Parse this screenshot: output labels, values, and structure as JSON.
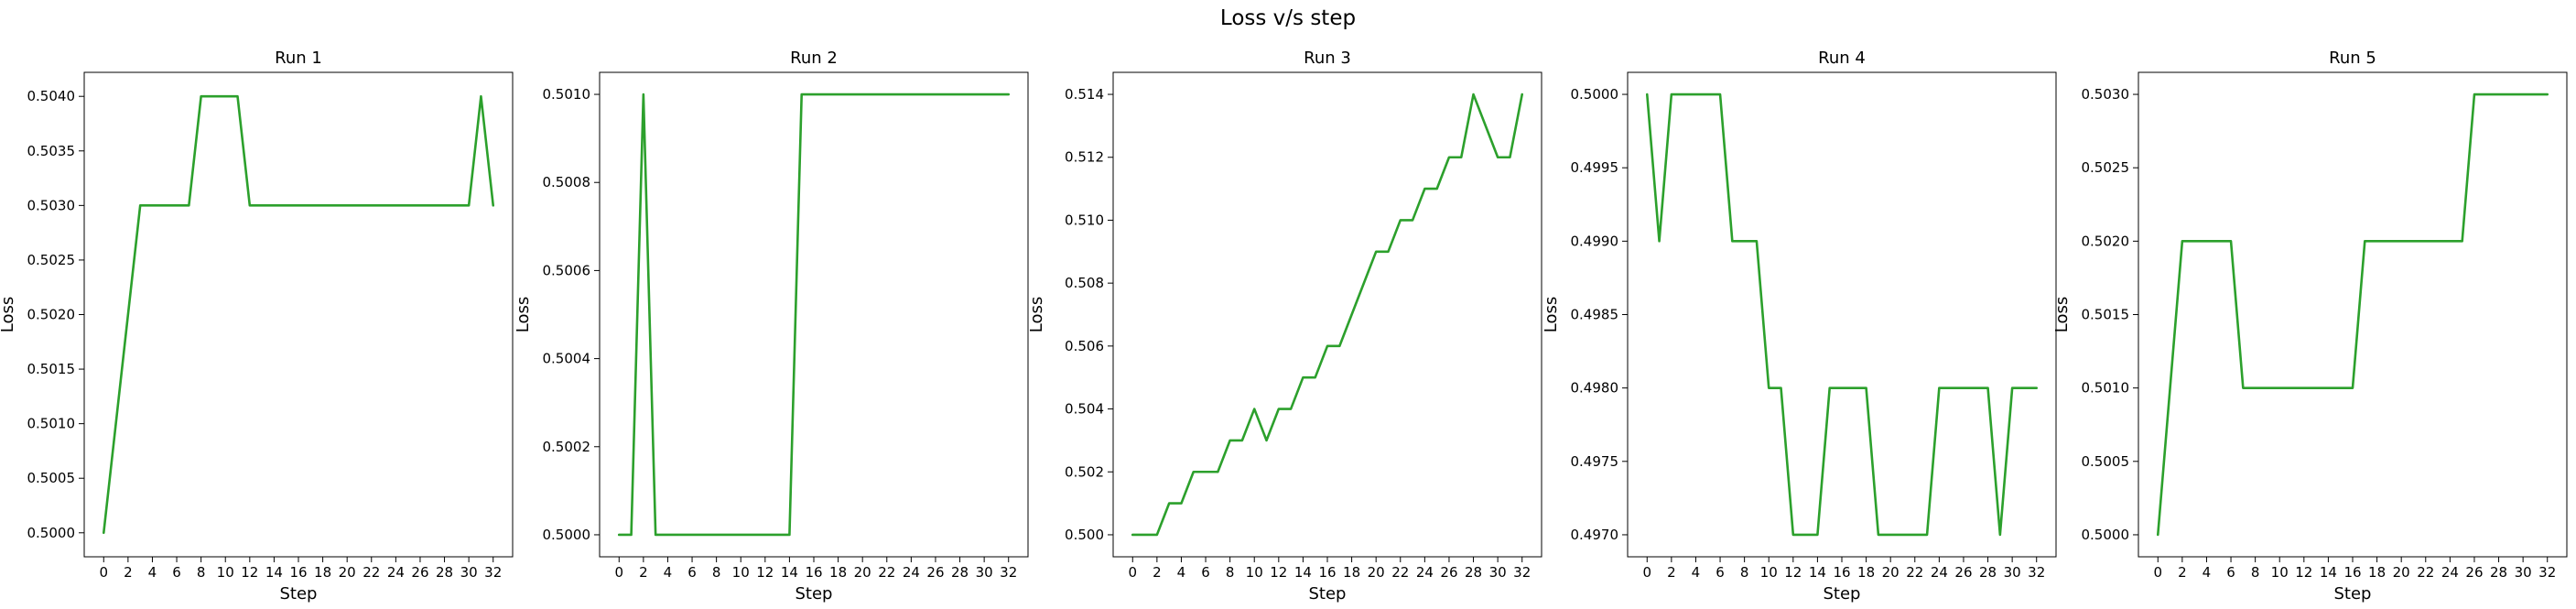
{
  "figure": {
    "title": "Loss v/s step"
  },
  "style": {
    "line_color": "#2ca02c",
    "frame_color": "#000000",
    "background": "#ffffff"
  },
  "chart_data": [
    {
      "type": "line",
      "title": "Run 1",
      "xlabel": "Step",
      "ylabel": "Loss",
      "grid": false,
      "xlim": [
        -1.6,
        33.6
      ],
      "ylim": [
        0.49978,
        0.50422
      ],
      "xticks": [
        0,
        2,
        4,
        6,
        8,
        10,
        12,
        14,
        16,
        18,
        20,
        22,
        24,
        26,
        28,
        30,
        32
      ],
      "yticks": [
        0.5,
        0.5005,
        0.501,
        0.5015,
        0.502,
        0.5025,
        0.503,
        0.5035,
        0.504
      ],
      "ytick_labels": [
        "0.5000",
        "0.5005",
        "0.5010",
        "0.5015",
        "0.5020",
        "0.5025",
        "0.5030",
        "0.5035",
        "0.5040"
      ],
      "x": [
        0,
        1,
        2,
        3,
        4,
        5,
        6,
        7,
        8,
        9,
        10,
        11,
        12,
        13,
        14,
        15,
        16,
        17,
        18,
        19,
        20,
        21,
        22,
        23,
        24,
        25,
        26,
        27,
        28,
        29,
        30,
        31,
        32
      ],
      "y": [
        0.5,
        0.501,
        0.502,
        0.503,
        0.503,
        0.503,
        0.503,
        0.503,
        0.504,
        0.504,
        0.504,
        0.504,
        0.503,
        0.503,
        0.503,
        0.503,
        0.503,
        0.503,
        0.503,
        0.503,
        0.503,
        0.503,
        0.503,
        0.503,
        0.503,
        0.503,
        0.503,
        0.503,
        0.503,
        0.503,
        0.503,
        0.504,
        0.503
      ]
    },
    {
      "type": "line",
      "title": "Run 2",
      "xlabel": "Step",
      "ylabel": "Loss",
      "grid": false,
      "xlim": [
        -1.6,
        33.6
      ],
      "ylim": [
        0.49995,
        0.50105
      ],
      "xticks": [
        0,
        2,
        4,
        6,
        8,
        10,
        12,
        14,
        16,
        18,
        20,
        22,
        24,
        26,
        28,
        30,
        32
      ],
      "yticks": [
        0.5,
        0.5002,
        0.5004,
        0.5006,
        0.5008,
        0.501
      ],
      "ytick_labels": [
        "0.5000",
        "0.5002",
        "0.5004",
        "0.5006",
        "0.5008",
        "0.5010"
      ],
      "x": [
        0,
        1,
        2,
        3,
        4,
        5,
        6,
        7,
        8,
        9,
        10,
        11,
        12,
        13,
        14,
        15,
        16,
        17,
        18,
        19,
        20,
        21,
        22,
        23,
        24,
        25,
        26,
        27,
        28,
        29,
        30,
        31,
        32
      ],
      "y": [
        0.5,
        0.5,
        0.501,
        0.5,
        0.5,
        0.5,
        0.5,
        0.5,
        0.5,
        0.5,
        0.5,
        0.5,
        0.5,
        0.5,
        0.5,
        0.501,
        0.501,
        0.501,
        0.501,
        0.501,
        0.501,
        0.501,
        0.501,
        0.501,
        0.501,
        0.501,
        0.501,
        0.501,
        0.501,
        0.501,
        0.501,
        0.501,
        0.501
      ]
    },
    {
      "type": "line",
      "title": "Run 3",
      "xlabel": "Step",
      "ylabel": "Loss",
      "grid": false,
      "xlim": [
        -1.6,
        33.6
      ],
      "ylim": [
        0.4993,
        0.5147
      ],
      "xticks": [
        0,
        2,
        4,
        6,
        8,
        10,
        12,
        14,
        16,
        18,
        20,
        22,
        24,
        26,
        28,
        30,
        32
      ],
      "yticks": [
        0.5,
        0.502,
        0.504,
        0.506,
        0.508,
        0.51,
        0.512,
        0.514
      ],
      "ytick_labels": [
        "0.500",
        "0.502",
        "0.504",
        "0.506",
        "0.508",
        "0.510",
        "0.512",
        "0.514"
      ],
      "x": [
        0,
        1,
        2,
        3,
        4,
        5,
        6,
        7,
        8,
        9,
        10,
        11,
        12,
        13,
        14,
        15,
        16,
        17,
        18,
        19,
        20,
        21,
        22,
        23,
        24,
        25,
        26,
        27,
        28,
        29,
        30,
        31,
        32
      ],
      "y": [
        0.5,
        0.5,
        0.5,
        0.501,
        0.501,
        0.502,
        0.502,
        0.502,
        0.503,
        0.503,
        0.504,
        0.503,
        0.504,
        0.504,
        0.505,
        0.505,
        0.506,
        0.506,
        0.507,
        0.508,
        0.509,
        0.509,
        0.51,
        0.51,
        0.511,
        0.511,
        0.512,
        0.512,
        0.514,
        0.513,
        0.512,
        0.512,
        0.514
      ]
    },
    {
      "type": "line",
      "title": "Run 4",
      "xlabel": "Step",
      "ylabel": "Loss",
      "grid": false,
      "xlim": [
        -1.6,
        33.6
      ],
      "ylim": [
        0.49685,
        0.50015
      ],
      "xticks": [
        0,
        2,
        4,
        6,
        8,
        10,
        12,
        14,
        16,
        18,
        20,
        22,
        24,
        26,
        28,
        30,
        32
      ],
      "yticks": [
        0.497,
        0.4975,
        0.498,
        0.4985,
        0.499,
        0.4995,
        0.5
      ],
      "ytick_labels": [
        "0.4970",
        "0.4975",
        "0.4980",
        "0.4985",
        "0.4990",
        "0.4995",
        "0.5000"
      ],
      "x": [
        0,
        1,
        2,
        3,
        4,
        5,
        6,
        7,
        8,
        9,
        10,
        11,
        12,
        13,
        14,
        15,
        16,
        17,
        18,
        19,
        20,
        21,
        22,
        23,
        24,
        25,
        26,
        27,
        28,
        29,
        30,
        31,
        32
      ],
      "y": [
        0.5,
        0.499,
        0.5,
        0.5,
        0.5,
        0.5,
        0.5,
        0.499,
        0.499,
        0.499,
        0.498,
        0.498,
        0.497,
        0.497,
        0.497,
        0.498,
        0.498,
        0.498,
        0.498,
        0.497,
        0.497,
        0.497,
        0.497,
        0.497,
        0.498,
        0.498,
        0.498,
        0.498,
        0.498,
        0.497,
        0.498,
        0.498,
        0.498
      ]
    },
    {
      "type": "line",
      "title": "Run 5",
      "xlabel": "Step",
      "ylabel": "Loss",
      "grid": false,
      "xlim": [
        -1.6,
        33.6
      ],
      "ylim": [
        0.49985,
        0.50315
      ],
      "xticks": [
        0,
        2,
        4,
        6,
        8,
        10,
        12,
        14,
        16,
        18,
        20,
        22,
        24,
        26,
        28,
        30,
        32
      ],
      "yticks": [
        0.5,
        0.5005,
        0.501,
        0.5015,
        0.502,
        0.5025,
        0.503
      ],
      "ytick_labels": [
        "0.5000",
        "0.5005",
        "0.5010",
        "0.5015",
        "0.5020",
        "0.5025",
        "0.5030"
      ],
      "x": [
        0,
        1,
        2,
        3,
        4,
        5,
        6,
        7,
        8,
        9,
        10,
        11,
        12,
        13,
        14,
        15,
        16,
        17,
        18,
        19,
        20,
        21,
        22,
        23,
        24,
        25,
        26,
        27,
        28,
        29,
        30,
        31,
        32
      ],
      "y": [
        0.5,
        0.501,
        0.502,
        0.502,
        0.502,
        0.502,
        0.502,
        0.501,
        0.501,
        0.501,
        0.501,
        0.501,
        0.501,
        0.501,
        0.501,
        0.501,
        0.501,
        0.502,
        0.502,
        0.502,
        0.502,
        0.502,
        0.502,
        0.502,
        0.502,
        0.502,
        0.503,
        0.503,
        0.503,
        0.503,
        0.503,
        0.503,
        0.503
      ]
    }
  ]
}
